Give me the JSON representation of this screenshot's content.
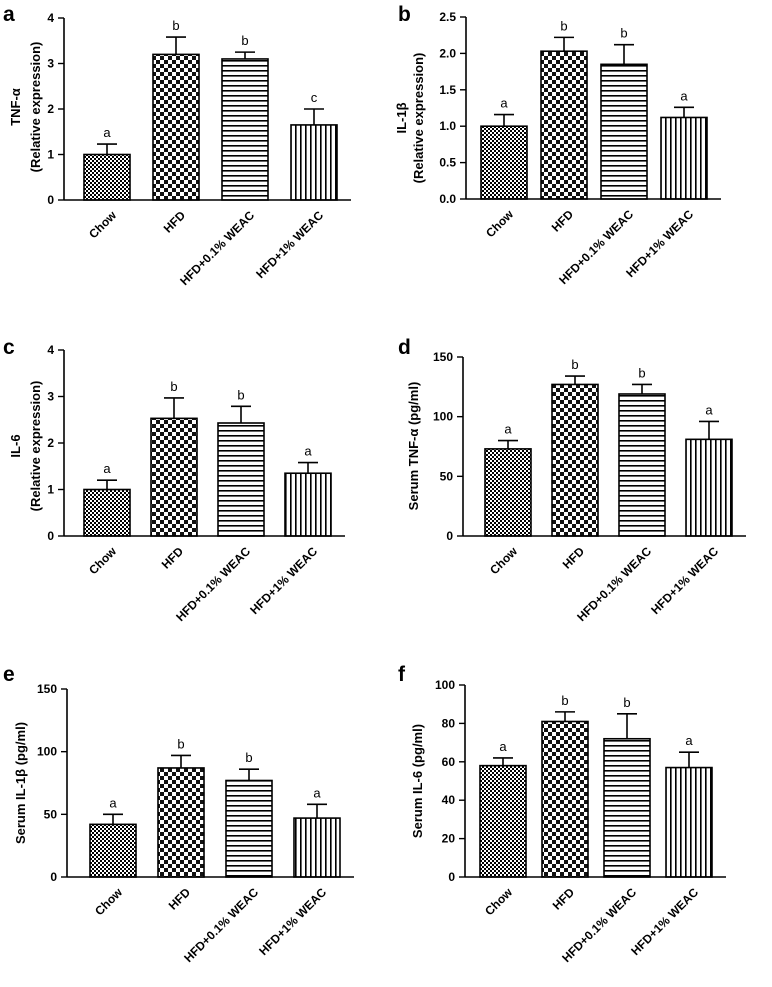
{
  "patterns": [
    "checker-fine",
    "checker-coarse",
    "hstripe",
    "vstripe"
  ],
  "chart_data": [
    {
      "type": "bar",
      "panel": "a",
      "ylabel_lines": [
        "TNF-α",
        "(Relative expression)"
      ],
      "categories": [
        "Chow",
        "HFD",
        "HFD+0.1% WEAC",
        "HFD+1% WEAC"
      ],
      "values": [
        1.0,
        3.2,
        3.1,
        1.65
      ],
      "errors": [
        0.23,
        0.38,
        0.15,
        0.35
      ],
      "sig_letters": [
        "a",
        "b",
        "b",
        "c"
      ],
      "ylim": [
        0,
        4
      ],
      "yticks": [
        0,
        1,
        2,
        3,
        4
      ],
      "ytick_labels": [
        "0",
        "1",
        "2",
        "3",
        "4"
      ]
    },
    {
      "type": "bar",
      "panel": "b",
      "ylabel_lines": [
        "IL-1β",
        "(Relative expression)"
      ],
      "categories": [
        "Chow",
        "HFD",
        "HFD+0.1% WEAC",
        "HFD+1% WEAC"
      ],
      "values": [
        1.0,
        2.03,
        1.85,
        1.12
      ],
      "errors": [
        0.16,
        0.19,
        0.27,
        0.14
      ],
      "sig_letters": [
        "a",
        "b",
        "b",
        "a"
      ],
      "ylim": [
        0,
        2.5
      ],
      "yticks": [
        0,
        0.5,
        1.0,
        1.5,
        2.0,
        2.5
      ],
      "ytick_labels": [
        "0.0",
        "0.5",
        "1.0",
        "1.5",
        "2.0",
        "2.5"
      ]
    },
    {
      "type": "bar",
      "panel": "c",
      "ylabel_lines": [
        "IL-6",
        "(Relative expression)"
      ],
      "categories": [
        "Chow",
        "HFD",
        "HFD+0.1% WEAC",
        "HFD+1% WEAC"
      ],
      "values": [
        1.0,
        2.53,
        2.43,
        1.35
      ],
      "errors": [
        0.2,
        0.44,
        0.36,
        0.23
      ],
      "sig_letters": [
        "a",
        "b",
        "b",
        "a"
      ],
      "ylim": [
        0,
        4
      ],
      "yticks": [
        0,
        1,
        2,
        3,
        4
      ],
      "ytick_labels": [
        "0",
        "1",
        "2",
        "3",
        "4"
      ]
    },
    {
      "type": "bar",
      "panel": "d",
      "ylabel_lines": [
        "Serum TNF-α (pg/ml)"
      ],
      "categories": [
        "Chow",
        "HFD",
        "HFD+0.1% WEAC",
        "HFD+1% WEAC"
      ],
      "values": [
        73,
        127,
        119,
        81
      ],
      "errors": [
        7,
        7,
        8,
        15
      ],
      "sig_letters": [
        "a",
        "b",
        "b",
        "a"
      ],
      "ylim": [
        0,
        150
      ],
      "yticks": [
        0,
        50,
        100,
        150
      ],
      "ytick_labels": [
        "0",
        "50",
        "100",
        "150"
      ]
    },
    {
      "type": "bar",
      "panel": "e",
      "ylabel_lines": [
        "Serum IL-1β (pg/ml)"
      ],
      "categories": [
        "Chow",
        "HFD",
        "HFD+0.1% WEAC",
        "HFD+1% WEAC"
      ],
      "values": [
        42,
        87,
        77,
        47
      ],
      "errors": [
        8,
        10,
        9,
        11
      ],
      "sig_letters": [
        "a",
        "b",
        "b",
        "a"
      ],
      "ylim": [
        0,
        150
      ],
      "yticks": [
        0,
        50,
        100,
        150
      ],
      "ytick_labels": [
        "0",
        "50",
        "100",
        "150"
      ]
    },
    {
      "type": "bar",
      "panel": "f",
      "ylabel_lines": [
        "Serum IL-6 (pg/ml)"
      ],
      "categories": [
        "Chow",
        "HFD",
        "HFD+0.1% WEAC",
        "HFD+1% WEAC"
      ],
      "values": [
        58,
        81,
        72,
        57
      ],
      "errors": [
        4,
        5,
        13,
        8
      ],
      "sig_letters": [
        "a",
        "b",
        "b",
        "a"
      ],
      "ylim": [
        0,
        100
      ],
      "yticks": [
        0,
        20,
        40,
        60,
        80,
        100
      ],
      "ytick_labels": [
        "0",
        "20",
        "40",
        "60",
        "80",
        "100"
      ]
    }
  ]
}
